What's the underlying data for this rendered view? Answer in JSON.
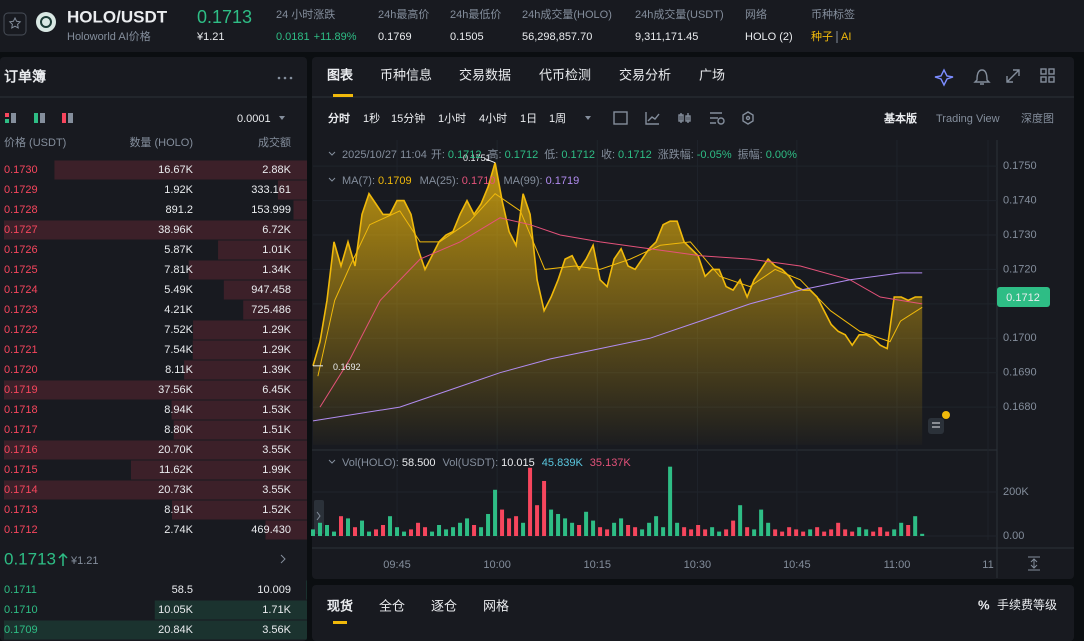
{
  "header": {
    "pair": "HOLO/USDT",
    "name": "Holoworld AI价格",
    "price": "0.1713",
    "price_cny": "¥1.21",
    "stats": [
      {
        "label": "24 小时涨跌",
        "value": "0.0181",
        "change": "+11.89%"
      },
      {
        "label": "24h最高价",
        "value": "0.1769"
      },
      {
        "label": "24h最低价",
        "value": "0.1505"
      },
      {
        "label": "24h成交量(HOLO)",
        "value": "56,298,857.70"
      },
      {
        "label": "24h成交量(USDT)",
        "value": "9,311,171.45"
      },
      {
        "label": "网络",
        "value": "HOLO (2)"
      },
      {
        "label": "币种标签",
        "value": "种子",
        "tag": "AI"
      }
    ]
  },
  "orderbook": {
    "title": "订单簿",
    "precision": "0.0001",
    "columns": [
      "价格 (USDT)",
      "数量 (HOLO)",
      "成交额"
    ],
    "asks": [
      [
        "0.1730",
        "16.67K",
        "2.88K"
      ],
      [
        "0.1729",
        "1.92K",
        "333.161"
      ],
      [
        "0.1728",
        "891.2",
        "153.999"
      ],
      [
        "0.1727",
        "38.96K",
        "6.72K"
      ],
      [
        "0.1726",
        "5.87K",
        "1.01K"
      ],
      [
        "0.1725",
        "7.81K",
        "1.34K"
      ],
      [
        "0.1724",
        "5.49K",
        "947.458"
      ],
      [
        "0.1723",
        "4.21K",
        "725.486"
      ],
      [
        "0.1722",
        "7.52K",
        "1.29K"
      ],
      [
        "0.1721",
        "7.54K",
        "1.29K"
      ],
      [
        "0.1720",
        "8.11K",
        "1.39K"
      ],
      [
        "0.1719",
        "37.56K",
        "6.45K"
      ],
      [
        "0.1718",
        "8.94K",
        "1.53K"
      ],
      [
        "0.1717",
        "8.80K",
        "1.51K"
      ],
      [
        "0.1716",
        "20.70K",
        "3.55K"
      ],
      [
        "0.1715",
        "11.62K",
        "1.99K"
      ],
      [
        "0.1714",
        "20.73K",
        "3.55K"
      ],
      [
        "0.1713",
        "8.91K",
        "1.52K"
      ],
      [
        "0.1712",
        "2.74K",
        "469.430"
      ]
    ],
    "mid": {
      "price": "0.1713",
      "cny": "¥1.21"
    },
    "bids": [
      [
        "0.1711",
        "58.5",
        "10.009"
      ],
      [
        "0.1710",
        "10.05K",
        "1.71K"
      ],
      [
        "0.1709",
        "20.84K",
        "3.56K"
      ]
    ]
  },
  "chart": {
    "tabs": [
      "图表",
      "币种信息",
      "交易数据",
      "代币检测",
      "交易分析",
      "广场"
    ],
    "intervals": [
      "分时",
      "1秒",
      "15分钟",
      "1小时",
      "4小时",
      "1日",
      "1周"
    ],
    "views": [
      "基本版",
      "Trading View",
      "深度图"
    ],
    "ohlc": {
      "time": "2025/10/27 11:04",
      "items": [
        {
          "label": "开:",
          "value": "0.1712"
        },
        {
          "label": "高:",
          "value": "0.1712"
        },
        {
          "label": "低:",
          "value": "0.1712"
        },
        {
          "label": "收:",
          "value": "0.1712"
        },
        {
          "label": "涨跌幅:",
          "value": "-0.05%"
        },
        {
          "label": "振幅:",
          "value": "0.00%"
        }
      ]
    },
    "price": {
      "type": "area",
      "color": "#f0b90b",
      "grid": true,
      "values": [
        0.1692,
        0.1699,
        0.1711,
        0.1728,
        0.1721,
        0.1728,
        0.1721,
        0.1736,
        0.1742,
        0.1739,
        0.1736,
        0.1736,
        0.174,
        0.174,
        0.1736,
        0.1726,
        0.172,
        0.1724,
        0.1728,
        0.173,
        0.1731,
        0.1736,
        0.174,
        0.1736,
        0.1739,
        0.1744,
        0.1751,
        0.174,
        0.1731,
        0.1727,
        0.1742,
        0.1736,
        0.1717,
        0.1708,
        0.1712,
        0.1717,
        0.1723,
        0.1724,
        0.172,
        0.1723,
        0.1727,
        0.1717,
        0.1715,
        0.1723,
        0.1726,
        0.1721,
        0.172,
        0.1723,
        0.1726,
        0.1728,
        0.1733,
        0.1734,
        0.1734,
        0.1728,
        0.1726,
        0.1724,
        0.1718,
        0.172,
        0.172,
        0.1715,
        0.1714,
        0.1717,
        0.1712,
        0.1717,
        0.172,
        0.1723,
        0.1721,
        0.172,
        0.1718,
        0.1715,
        0.1714,
        0.1714,
        0.1712,
        0.1708,
        0.1704,
        0.1702,
        0.1701,
        0.1698,
        0.1701,
        0.1701,
        0.17,
        0.1698,
        0.1697,
        0.1712,
        0.1712,
        0.1711,
        0.1712,
        0.1712
      ],
      "xlim": [
        0,
        97.4
      ],
      "ylim": [
        0.1669,
        0.17576
      ],
      "xticks": [
        {
          "value": 12,
          "label": "09:45"
        },
        {
          "value": 26.3,
          "label": "10:00"
        },
        {
          "value": 40.6,
          "label": "10:15"
        },
        {
          "value": 54.9,
          "label": "10:30"
        },
        {
          "value": 69.1,
          "label": "10:45"
        },
        {
          "value": 83.4,
          "label": "11:00"
        },
        {
          "value": 96.4,
          "label": "11"
        }
      ],
      "yticks": [
        {
          "value": 0.175,
          "label": "0.1750"
        },
        {
          "value": 0.174,
          "label": "0.1740"
        },
        {
          "value": 0.173,
          "label": "0.1730"
        },
        {
          "value": 0.172,
          "label": "0.1720"
        },
        {
          "value": 0.171,
          "label": "0.1710"
        },
        {
          "value": 0.17,
          "label": "0.1700"
        },
        {
          "value": 0.169,
          "label": "0.1690"
        },
        {
          "value": 0.168,
          "label": "0.1680"
        }
      ],
      "annotations": [
        {
          "label": "0.1751",
          "x": 26
        },
        {
          "label": "0.1692",
          "x": 0
        }
      ],
      "last_price": "0.1712",
      "ma": [
        {
          "name": "MA(7):",
          "value": "0.1709",
          "color": "#f0b90b",
          "x": [
            0.7,
            3.1,
            5.3,
            8.1,
            12.4,
            15.3,
            18.1,
            22.4,
            26,
            29.6,
            33.1,
            37.4,
            41,
            45.3,
            49.6,
            53.9,
            58.1,
            62.4,
            66,
            69.6,
            73.9,
            78.1,
            82.4,
            83.9,
            87
          ],
          "values": [
            0.1689,
            0.1711,
            0.1721,
            0.1733,
            0.1737,
            0.1728,
            0.1728,
            0.1734,
            0.1742,
            0.1737,
            0.172,
            0.1721,
            0.172,
            0.1723,
            0.1727,
            0.1728,
            0.1718,
            0.1715,
            0.172,
            0.1717,
            0.1708,
            0.1702,
            0.1699,
            0.1705,
            0.1709
          ]
        },
        {
          "name": "MA(25):",
          "value": "0.1710",
          "color": "#e4527a",
          "x": [
            1,
            5.3,
            9.6,
            15.3,
            21,
            26.7,
            31,
            35.3,
            41,
            48.1,
            55.3,
            62.4,
            69.6,
            76.7,
            81,
            87
          ],
          "values": [
            0.168,
            0.1694,
            0.1711,
            0.1723,
            0.1728,
            0.1735,
            0.1733,
            0.173,
            0.1728,
            0.1726,
            0.1724,
            0.1723,
            0.1721,
            0.1717,
            0.1712,
            0.171
          ]
        },
        {
          "name": "MA(99):",
          "value": "0.1719",
          "color": "#b18cf0",
          "x": [
            0,
            12.4,
            19.6,
            26.7,
            33.9,
            41,
            48.1,
            55.3,
            62.4,
            69.6,
            76.7,
            83.9,
            87
          ],
          "values": [
            0.1676,
            0.168,
            0.1685,
            0.169,
            0.1694,
            0.1697,
            0.17,
            0.1705,
            0.171,
            0.1714,
            0.1717,
            0.1719,
            0.1719
          ]
        }
      ]
    },
    "volume": {
      "type": "bar",
      "up_color": "#2ebd85",
      "down_color": "#f6465d",
      "legend": [
        {
          "label": "Vol(HOLO):",
          "value": "58.500"
        },
        {
          "label": "Vol(USDT):",
          "value": "10.015"
        },
        {
          "value": "45.839K",
          "color": "#5ac8e0"
        },
        {
          "value": "35.137K",
          "color": "#e4527a"
        }
      ],
      "values": [
        30000,
        60000,
        50000,
        20000,
        90000,
        80000,
        40000,
        70000,
        20000,
        30000,
        50000,
        90000,
        40000,
        20000,
        30000,
        60000,
        40000,
        20000,
        50000,
        30000,
        40000,
        60000,
        80000,
        50000,
        40000,
        100000,
        210000,
        120000,
        80000,
        90000,
        60000,
        310000,
        140000,
        250000,
        120000,
        100000,
        80000,
        60000,
        50000,
        110000,
        70000,
        40000,
        30000,
        60000,
        80000,
        50000,
        40000,
        30000,
        60000,
        90000,
        40000,
        315000,
        60000,
        40000,
        30000,
        50000,
        30000,
        40000,
        20000,
        30000,
        70000,
        140000,
        40000,
        30000,
        120000,
        60000,
        30000,
        20000,
        40000,
        30000,
        20000,
        30000,
        40000,
        20000,
        30000,
        60000,
        30000,
        20000,
        40000,
        30000,
        20000,
        40000,
        20000,
        30000,
        60000,
        50000,
        90000,
        10000
      ],
      "ylim": [
        0,
        368000
      ],
      "yticks": [
        {
          "value": 200000,
          "label": "200K"
        },
        {
          "value": 0,
          "label": "0.00"
        }
      ]
    }
  },
  "trade": {
    "tabs": [
      "现货",
      "全仓",
      "逐仓",
      "网格"
    ],
    "fee": "手续费等级"
  }
}
